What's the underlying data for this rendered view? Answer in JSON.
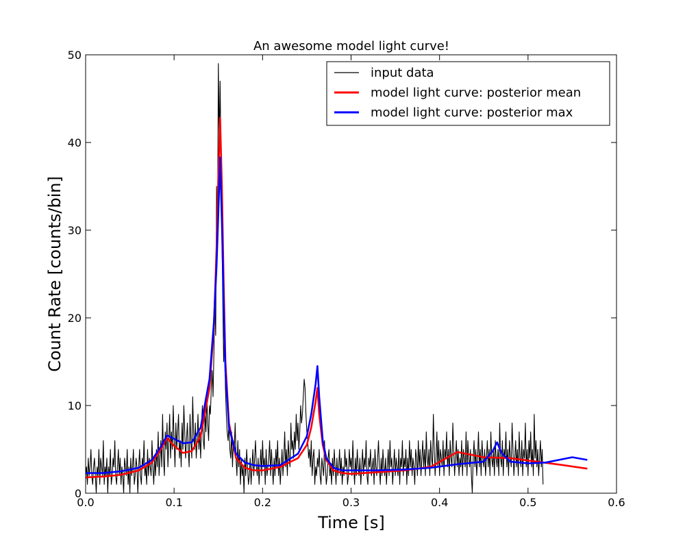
{
  "chart_data": {
    "type": "line",
    "title": "An awesome model light curve!",
    "xlabel": "Time [s]",
    "ylabel": "Count Rate [counts/bin]",
    "xlim": [
      0.0,
      0.6
    ],
    "ylim": [
      0,
      50
    ],
    "xticks": [
      0.0,
      0.1,
      0.2,
      0.3,
      0.4,
      0.5,
      0.6
    ],
    "xtick_labels": [
      "0.0",
      "0.1",
      "0.2",
      "0.3",
      "0.4",
      "0.5",
      "0.6"
    ],
    "yticks": [
      0,
      10,
      20,
      30,
      40,
      50
    ],
    "ytick_labels": [
      "0",
      "10",
      "20",
      "30",
      "40",
      "50"
    ],
    "grid": false,
    "legend": "top-right",
    "series": [
      {
        "name": "input data",
        "color": "#000000",
        "style": "thin",
        "x_start": 0.0,
        "x_step": 0.001,
        "values": [
          2,
          3,
          1,
          4,
          2,
          3,
          5,
          2,
          1,
          3,
          4,
          2,
          0,
          3,
          2,
          5,
          1,
          4,
          3,
          2,
          6,
          1,
          3,
          2,
          4,
          0,
          3,
          2,
          5,
          1,
          2,
          4,
          3,
          6,
          2,
          1,
          3,
          5,
          2,
          4,
          1,
          3,
          2,
          0,
          4,
          3,
          2,
          5,
          1,
          3,
          0,
          4,
          2,
          3,
          5,
          1,
          2,
          4,
          3,
          0,
          3,
          5,
          2,
          1,
          4,
          3,
          6,
          2,
          3,
          1,
          5,
          2,
          4,
          3,
          2,
          6,
          3,
          1,
          4,
          2,
          5,
          3,
          7,
          2,
          4,
          6,
          3,
          9,
          4,
          2,
          7,
          5,
          8,
          3,
          6,
          9,
          4,
          7,
          5,
          10,
          6,
          3,
          8,
          5,
          7,
          9,
          4,
          6,
          3,
          8,
          5,
          10,
          7,
          4,
          6,
          8,
          5,
          3,
          9,
          6,
          4,
          11,
          7,
          5,
          8,
          4,
          6,
          9,
          5,
          7,
          4,
          8,
          10,
          6,
          5,
          9,
          7,
          11,
          8,
          6,
          10,
          9,
          12,
          14,
          11,
          16,
          22,
          18,
          35,
          28,
          49,
          40,
          47,
          38,
          30,
          22,
          15,
          18,
          12,
          9,
          7,
          6,
          8,
          5,
          4,
          7,
          3,
          6,
          5,
          8,
          4,
          2,
          6,
          3,
          5,
          1,
          4,
          2,
          3,
          0,
          4,
          2,
          5,
          3,
          1,
          2,
          4,
          1,
          3,
          5,
          2,
          4,
          6,
          3,
          2,
          4,
          1,
          3,
          5,
          2,
          6,
          3,
          4,
          1,
          5,
          2,
          3,
          4,
          6,
          2,
          5,
          3,
          1,
          4,
          2,
          5,
          3,
          6,
          2,
          4,
          1,
          3,
          5,
          2,
          4,
          7,
          3,
          5,
          2,
          6,
          4,
          3,
          8,
          5,
          6,
          4,
          7,
          5,
          9,
          6,
          8,
          5,
          7,
          10,
          8,
          9,
          11,
          13,
          12,
          9,
          7,
          6,
          4,
          5,
          3,
          6,
          2,
          4,
          5,
          1,
          3,
          2,
          4,
          3,
          5,
          2,
          1,
          4,
          3,
          2,
          6,
          3,
          1,
          2,
          4,
          5,
          2,
          3,
          1,
          4,
          2,
          5,
          3,
          1,
          4,
          2,
          3,
          5,
          2,
          4,
          1,
          3,
          2,
          5,
          3,
          4,
          1,
          2,
          5,
          3,
          4,
          2,
          6,
          3,
          1,
          4,
          2,
          5,
          3,
          2,
          4,
          1,
          3,
          5,
          2,
          4,
          3,
          6,
          2,
          1,
          4,
          3,
          5,
          2,
          3,
          4,
          1,
          5,
          3,
          2,
          4,
          6,
          3,
          1,
          4,
          2,
          5,
          3,
          2,
          4,
          1,
          3,
          5,
          2,
          6,
          3,
          4,
          1,
          3,
          5,
          2,
          4,
          3,
          2,
          5,
          1,
          4,
          3,
          6,
          2,
          4,
          3,
          5,
          1,
          4,
          2,
          6,
          3,
          5,
          2,
          4,
          3,
          1,
          5,
          4,
          2,
          6,
          3,
          5,
          2,
          4,
          6,
          3,
          5,
          2,
          7,
          4,
          3,
          5,
          2,
          6,
          4,
          3,
          9,
          5,
          2,
          4,
          7,
          3,
          6,
          2,
          5,
          4,
          3,
          6,
          2,
          5,
          4,
          7,
          3,
          5,
          2,
          6,
          4,
          3,
          8,
          5,
          2,
          4,
          6,
          3,
          5,
          2,
          4,
          3,
          6,
          2,
          5,
          4,
          3,
          7,
          2,
          6,
          4,
          3,
          5,
          2,
          0,
          4,
          6,
          3,
          5,
          2,
          4,
          7,
          3,
          5,
          2,
          6,
          4,
          3,
          5,
          2,
          4,
          6,
          3,
          5,
          2,
          7,
          4,
          3,
          5,
          2,
          6,
          4,
          3,
          5,
          2,
          8,
          4,
          3,
          6,
          2,
          5,
          4,
          7,
          3,
          5,
          2,
          6,
          4,
          3,
          8,
          5,
          2,
          4,
          6,
          3,
          5,
          2,
          7,
          4,
          3,
          6,
          2,
          5,
          4,
          8,
          3,
          5,
          2,
          6,
          4,
          7,
          3,
          5,
          2,
          9,
          4,
          6,
          3,
          5,
          2,
          4,
          6,
          3,
          5,
          1
        ]
      },
      {
        "name": "model light curve: posterior mean",
        "color": "#ff0000",
        "style": "thick",
        "x": [
          0.0,
          0.02,
          0.04,
          0.06,
          0.075,
          0.085,
          0.092,
          0.1,
          0.11,
          0.12,
          0.13,
          0.14,
          0.145,
          0.148,
          0.15,
          0.152,
          0.154,
          0.156,
          0.158,
          0.162,
          0.17,
          0.18,
          0.19,
          0.2,
          0.22,
          0.24,
          0.25,
          0.255,
          0.26,
          0.262,
          0.264,
          0.268,
          0.272,
          0.28,
          0.29,
          0.3,
          0.33,
          0.36,
          0.39,
          0.42,
          0.45,
          0.48,
          0.51,
          0.54,
          0.567
        ],
        "y": [
          1.8,
          1.9,
          2.1,
          2.6,
          3.5,
          5.0,
          6.3,
          5.4,
          4.6,
          4.8,
          6.5,
          12.0,
          19.0,
          28.0,
          36.0,
          42.8,
          35.0,
          24.0,
          15.0,
          8.0,
          4.0,
          2.9,
          2.6,
          2.6,
          3.0,
          4.0,
          5.5,
          7.5,
          10.5,
          12.0,
          9.0,
          5.5,
          3.8,
          2.6,
          2.3,
          2.2,
          2.4,
          2.6,
          3.0,
          4.7,
          4.1,
          4.0,
          3.6,
          3.2,
          2.8
        ]
      },
      {
        "name": "model light curve: posterior max",
        "color": "#0000ff",
        "style": "thick",
        "x": [
          0.0,
          0.02,
          0.04,
          0.06,
          0.075,
          0.085,
          0.092,
          0.1,
          0.11,
          0.12,
          0.13,
          0.14,
          0.145,
          0.148,
          0.15,
          0.152,
          0.154,
          0.156,
          0.158,
          0.162,
          0.17,
          0.18,
          0.19,
          0.2,
          0.22,
          0.24,
          0.25,
          0.255,
          0.26,
          0.262,
          0.264,
          0.268,
          0.272,
          0.28,
          0.29,
          0.3,
          0.33,
          0.36,
          0.39,
          0.42,
          0.45,
          0.46,
          0.465,
          0.47,
          0.48,
          0.5,
          0.52,
          0.55,
          0.567
        ],
        "y": [
          2.3,
          2.3,
          2.5,
          2.9,
          3.8,
          5.3,
          6.6,
          6.2,
          5.7,
          5.8,
          7.5,
          13.0,
          19.5,
          26.0,
          32.0,
          38.3,
          31.0,
          22.0,
          14.0,
          7.5,
          4.5,
          3.5,
          3.2,
          3.1,
          3.2,
          4.5,
          6.5,
          9.0,
          12.5,
          14.5,
          11.0,
          6.0,
          4.0,
          2.9,
          2.6,
          2.6,
          2.6,
          2.7,
          2.9,
          3.3,
          3.6,
          4.8,
          5.8,
          4.6,
          3.6,
          3.4,
          3.5,
          4.1,
          3.8
        ]
      }
    ]
  }
}
